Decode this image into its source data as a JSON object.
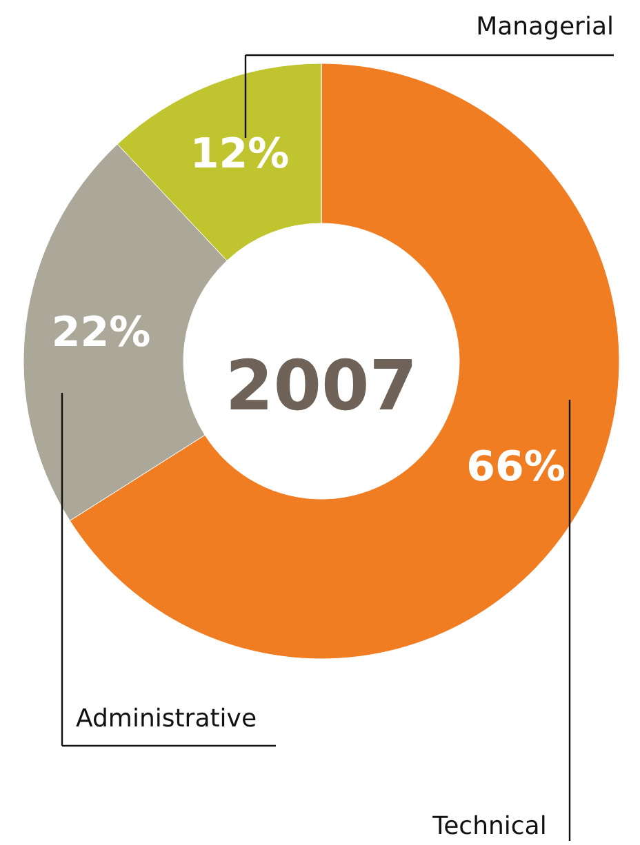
{
  "chart_data": {
    "type": "donut",
    "categories": [
      "Technical",
      "Administrative",
      "Managerial"
    ],
    "values": [
      66,
      22,
      12
    ],
    "colors": [
      "#f07d22",
      "#aca899",
      "#c0c42f"
    ],
    "value_labels": [
      "66%",
      "22%",
      "12%"
    ],
    "annotations": [
      "2007"
    ]
  }
}
